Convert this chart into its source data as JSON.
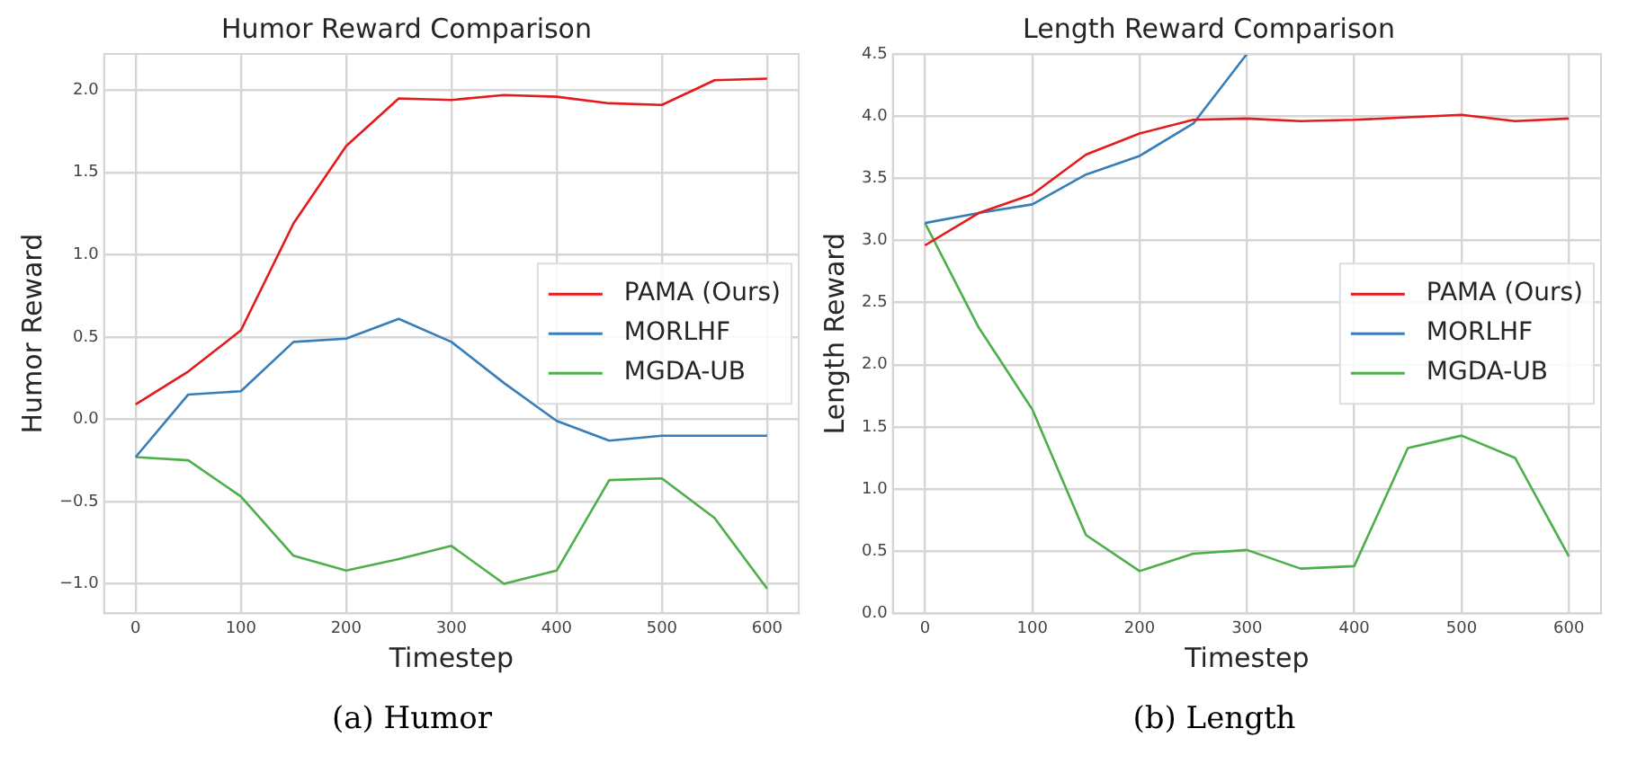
{
  "chart_data": [
    {
      "type": "line",
      "title": "Humor Reward Comparison",
      "xlabel": "Timestep",
      "ylabel": "Humor Reward",
      "annotations": [
        "(a) Humor"
      ],
      "x": [
        0,
        50,
        100,
        150,
        200,
        250,
        300,
        350,
        400,
        450,
        500,
        550,
        600
      ],
      "series": [
        {
          "name": "PAMA (Ours)",
          "color": "#e41a1c",
          "values": [
            0.09,
            0.29,
            0.54,
            1.19,
            1.66,
            1.95,
            1.94,
            1.97,
            1.96,
            1.92,
            1.91,
            2.06,
            2.07
          ]
        },
        {
          "name": "MORLHF",
          "color": "#377eb8",
          "values": [
            -0.23,
            0.15,
            0.17,
            0.47,
            0.49,
            0.61,
            0.47,
            0.22,
            -0.01,
            -0.13,
            -0.1,
            -0.1,
            -0.1
          ]
        },
        {
          "name": "MGDA-UB",
          "color": "#4daf4a",
          "values": [
            -0.23,
            -0.25,
            -0.47,
            -0.83,
            -0.92,
            -0.85,
            -0.77,
            -1.0,
            -0.92,
            -0.37,
            -0.36,
            -0.6,
            -1.03
          ]
        }
      ],
      "xlim": [
        -30,
        630
      ],
      "xticks": [
        0,
        100,
        200,
        300,
        400,
        500,
        600
      ],
      "ylim": [
        -1.18,
        2.22
      ],
      "yticks": [
        {
          "value": -1,
          "label": "−1.0"
        },
        {
          "value": -0.5,
          "label": "−0.5"
        },
        {
          "value": 0,
          "label": "0.0"
        },
        {
          "value": 0.5,
          "label": "0.5"
        },
        {
          "value": 1,
          "label": "1.0"
        },
        {
          "value": 1.5,
          "label": "1.5"
        },
        {
          "value": 2,
          "label": "2.0"
        }
      ],
      "grid": true,
      "legend": "center right"
    },
    {
      "type": "line",
      "title": "Length Reward Comparison",
      "xlabel": "Timestep",
      "ylabel": "Length Reward",
      "annotations": [
        "(b) Length"
      ],
      "x": [
        0,
        50,
        100,
        150,
        200,
        250,
        300,
        350,
        400,
        450,
        500,
        550,
        600
      ],
      "series": [
        {
          "name": "PAMA (Ours)",
          "color": "#e41a1c",
          "values": [
            2.96,
            3.22,
            3.37,
            3.69,
            3.86,
            3.97,
            3.98,
            3.96,
            3.97,
            3.99,
            4.01,
            3.96,
            3.98
          ]
        },
        {
          "name": "MORLHF",
          "color": "#377eb8",
          "values": [
            3.14,
            3.22,
            3.29,
            3.53,
            3.68,
            3.94,
            4.5,
            null,
            null,
            null,
            null,
            null,
            null
          ]
        },
        {
          "name": "MGDA-UB",
          "color": "#4daf4a",
          "values": [
            3.14,
            2.3,
            1.64,
            0.63,
            0.34,
            0.48,
            0.51,
            0.36,
            0.38,
            1.33,
            1.43,
            1.25,
            0.46
          ]
        }
      ],
      "xlim": [
        -30,
        630
      ],
      "xticks": [
        0,
        100,
        200,
        300,
        400,
        500,
        600
      ],
      "ylim": [
        0,
        4.5
      ],
      "yticks": [
        {
          "value": 0,
          "label": "0.0"
        },
        {
          "value": 0.5,
          "label": "0.5"
        },
        {
          "value": 1,
          "label": "1.0"
        },
        {
          "value": 1.5,
          "label": "1.5"
        },
        {
          "value": 2,
          "label": "2.0"
        },
        {
          "value": 2.5,
          "label": "2.5"
        },
        {
          "value": 3,
          "label": "3.0"
        },
        {
          "value": 3.5,
          "label": "3.5"
        },
        {
          "value": 4,
          "label": "4.0"
        },
        {
          "value": 4.5,
          "label": "4.5"
        }
      ],
      "grid": true,
      "legend": "center right"
    }
  ]
}
